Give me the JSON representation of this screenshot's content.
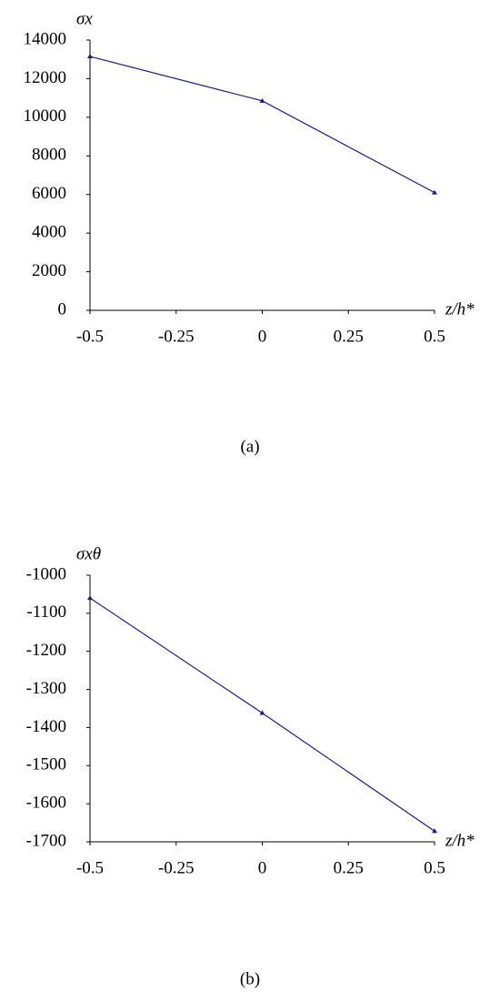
{
  "chart_data": [
    {
      "type": "line",
      "ylabel": "σx",
      "xlabel": "z/h*",
      "caption": "(a)",
      "x": [
        -0.5,
        0,
        0.5
      ],
      "series": [
        {
          "color": "#1a1a8c",
          "values": [
            13150,
            10850,
            6100
          ]
        }
      ],
      "xlim": [
        -0.5,
        0.5
      ],
      "xticks": [
        -0.5,
        -0.25,
        0,
        0.25,
        0.5
      ],
      "ylim": [
        0,
        14000
      ],
      "yticks": [
        0,
        2000,
        4000,
        6000,
        8000,
        10000,
        12000,
        14000
      ]
    },
    {
      "type": "line",
      "ylabel": "σxθ",
      "xlabel": "z/h*",
      "caption": "(b)",
      "x": [
        -0.5,
        0,
        0.5
      ],
      "series": [
        {
          "color": "#1a1a8c",
          "values": [
            -1060,
            -1362,
            -1672
          ]
        }
      ],
      "xlim": [
        -0.5,
        0.5
      ],
      "xticks": [
        -0.5,
        -0.25,
        0,
        0.25,
        0.5
      ],
      "ylim": [
        -1700,
        -1000
      ],
      "yticks": [
        -1700,
        -1600,
        -1500,
        -1400,
        -1300,
        -1200,
        -1100,
        -1000
      ]
    }
  ]
}
